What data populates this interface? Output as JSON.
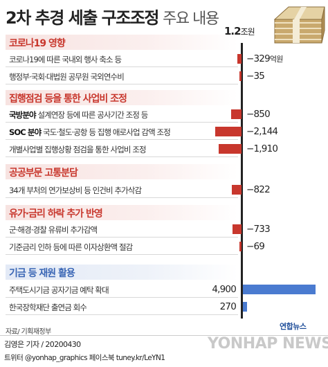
{
  "title": {
    "main": "2차 추경 세출 구조조정",
    "sub": "주요 내용"
  },
  "scale_note": {
    "value": "1.2",
    "unit": "조원"
  },
  "sections": [
    {
      "name": "코로나19 영향",
      "color": "#c8372d",
      "rows": [
        {
          "bold": "",
          "label": "코로나19에 따른 국내외 행사 축소 등",
          "value": "−329",
          "unit": "억원"
        },
        {
          "bold": "",
          "label": "행정부·국회·대법원 공무원 국외연수비",
          "value": "−35",
          "unit": ""
        }
      ]
    },
    {
      "name": "집행점검 등을 통한 사업비 조정",
      "color": "#c8372d",
      "rows": [
        {
          "bold": "국방분야",
          "label": " 설계연장 등에 따른 공사기간 조정 등",
          "value": "−850",
          "unit": ""
        },
        {
          "bold": "SOC 분야",
          "label": " 국도·철도·공항 등 집행 애로사업 감액 조정",
          "value": "−2,144",
          "unit": ""
        },
        {
          "bold": "",
          "label": "개별사업별 집행상황 점검을 통한 사업비 조정",
          "value": "−1,910",
          "unit": ""
        }
      ]
    },
    {
      "name": "공공부문 고통분담",
      "color": "#c8372d",
      "rows": [
        {
          "bold": "",
          "label": "34개 부처의 연가보상비 등 인건비 추가삭감",
          "value": "−822",
          "unit": ""
        }
      ]
    },
    {
      "name": "유가·금리 하락 추가 반영",
      "color": "#c8372d",
      "rows": [
        {
          "bold": "",
          "label": "군·해경·경찰 유류비 추가감액",
          "value": "−733",
          "unit": ""
        },
        {
          "bold": "",
          "label": "기준금리 인하 등에 따른 이자상환액 절감",
          "value": "−69",
          "unit": ""
        }
      ]
    },
    {
      "name": "기금 등 재원 활용",
      "color": "#3a66b5",
      "rows": [
        {
          "bold": "",
          "label": "주택도시기금 공자기금 예탁 확대",
          "value": "4,900",
          "unit": ""
        },
        {
          "bold": "",
          "label": "한국장학재단 출연금 회수",
          "value": "270",
          "unit": ""
        }
      ]
    }
  ],
  "chart_data": {
    "type": "bar",
    "orientation": "horizontal",
    "unit": "억원",
    "categories": [
      "코로나19에 따른 국내외 행사 축소 등",
      "행정부·국회·대법원 공무원 국외연수비",
      "국방분야 설계연장 등에 따른 공사기간 조정 등",
      "SOC 분야 국도·철도·공항 등 집행 애로사업 감액 조정",
      "개별사업별 집행상황 점검을 통한 사업비 조정",
      "34개 부처의 연가보상비 등 인건비 추가삭감",
      "군·해경·경찰 유류비 추가감액",
      "기준금리 인하 등에 따른 이자상환액 절감",
      "주택도시기금 공자기금 예탁 확대",
      "한국장학재단 출연금 회수"
    ],
    "values": [
      -329,
      -35,
      -850,
      -2144,
      -1910,
      -822,
      -733,
      -69,
      4900,
      270
    ],
    "colors": {
      "negative": "#c8372d",
      "positive": "#4a7bd0"
    },
    "title": "2차 추경 세출 구조조정 주요 내용"
  },
  "source": "자료/ 기획재정부",
  "byline": "김영은 기자 / 20200430",
  "social": "트위터 @yonhap_graphics  페이스북 tuney.kr/LeYN1",
  "logo_text": "연합뉴스",
  "watermark": "YONHAP NEWS"
}
